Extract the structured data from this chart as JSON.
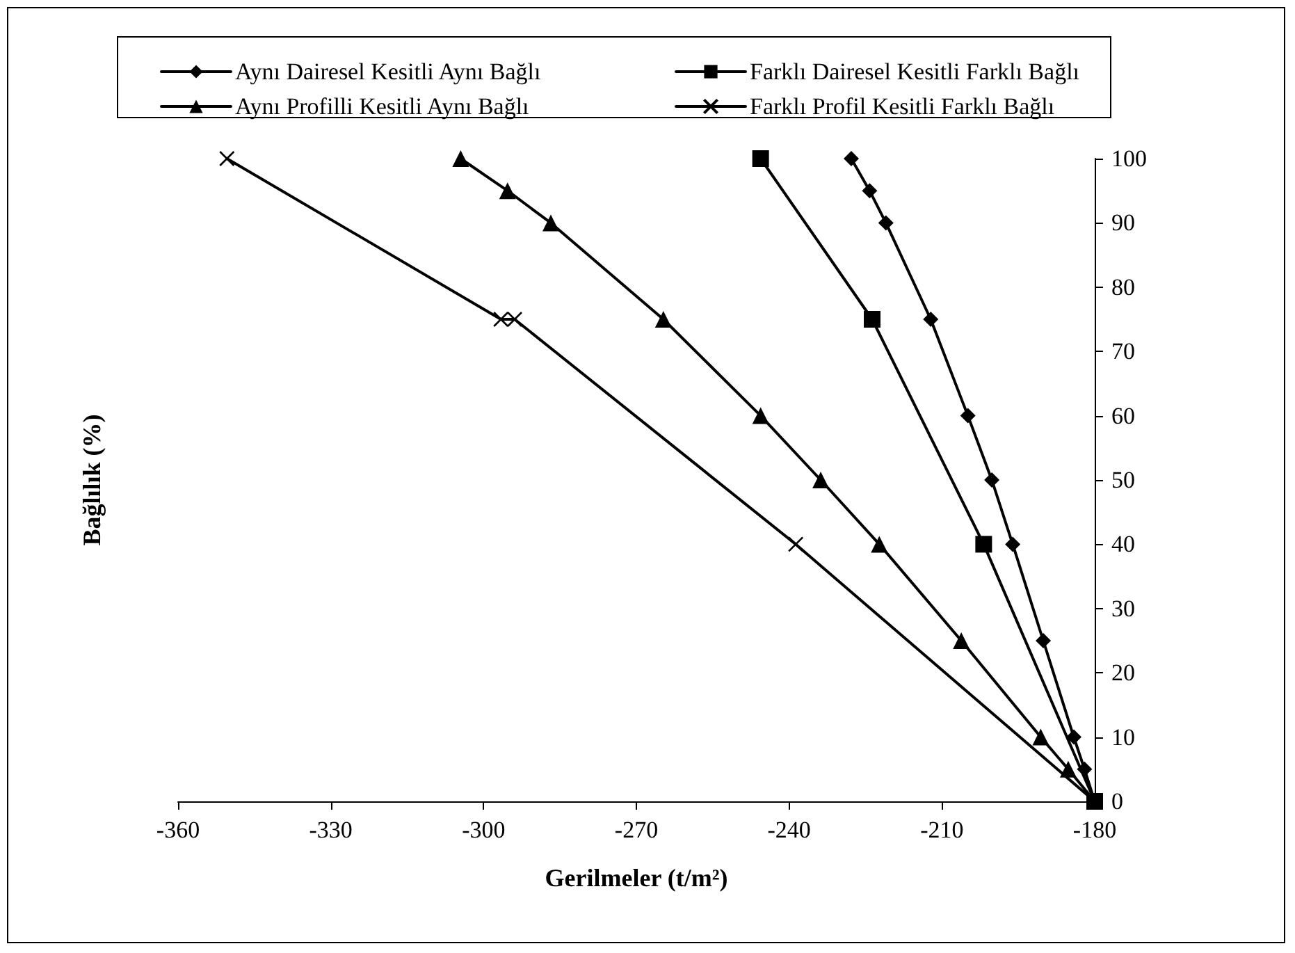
{
  "chart_data": {
    "type": "line",
    "xlabel": "Gerilmeler (t/m²)",
    "ylabel": "Bağlılık (%)",
    "xlim": [
      -360,
      -180
    ],
    "xticks": [
      -360,
      -330,
      -300,
      -270,
      -240,
      -210,
      -180
    ],
    "ylim": [
      0,
      100
    ],
    "yticks": [
      0,
      10,
      20,
      30,
      40,
      50,
      60,
      70,
      80,
      90,
      100
    ],
    "grid": false,
    "legend": "top",
    "line_style": "solid",
    "series": [
      {
        "name": "Aynı Dairesel Kesitli Aynı Bağlı",
        "color": "#000000",
        "marker": "diamond",
        "x": [
          -227.8,
          -224.2,
          -221,
          -212.2,
          -204.9,
          -200.2,
          -196.1,
          -190.1,
          -184.1,
          -182,
          -180
        ],
        "values": [
          100,
          95,
          90,
          75,
          60,
          50,
          40,
          25,
          10,
          5,
          0
        ]
      },
      {
        "name": "Farklı Dairesel Kesitli Farklı Bağlı",
        "color": "#000000",
        "marker": "square",
        "x": [
          -245.6,
          -223.7,
          -201.8,
          -180
        ],
        "values": [
          100,
          75,
          40,
          0
        ]
      },
      {
        "name": "Aynı Profilli Kesitli Aynı Bağlı",
        "color": "#000000",
        "marker": "triangle",
        "x": [
          -304.5,
          -295.3,
          -286.8,
          -264.7,
          -245.6,
          -233.8,
          -222.3,
          -206.2,
          -190.6,
          -185.2,
          -180
        ],
        "values": [
          100,
          95,
          90,
          75,
          60,
          50,
          40,
          25,
          10,
          5,
          0
        ]
      },
      {
        "name": "Farklı Profil Kesitli Farklı Bağlı",
        "color": "#000000",
        "marker": "cross",
        "x": [
          -350.4,
          -296.6,
          -293.9,
          -238.7,
          -180
        ],
        "values": [
          100,
          75,
          75,
          40,
          0
        ]
      }
    ]
  }
}
